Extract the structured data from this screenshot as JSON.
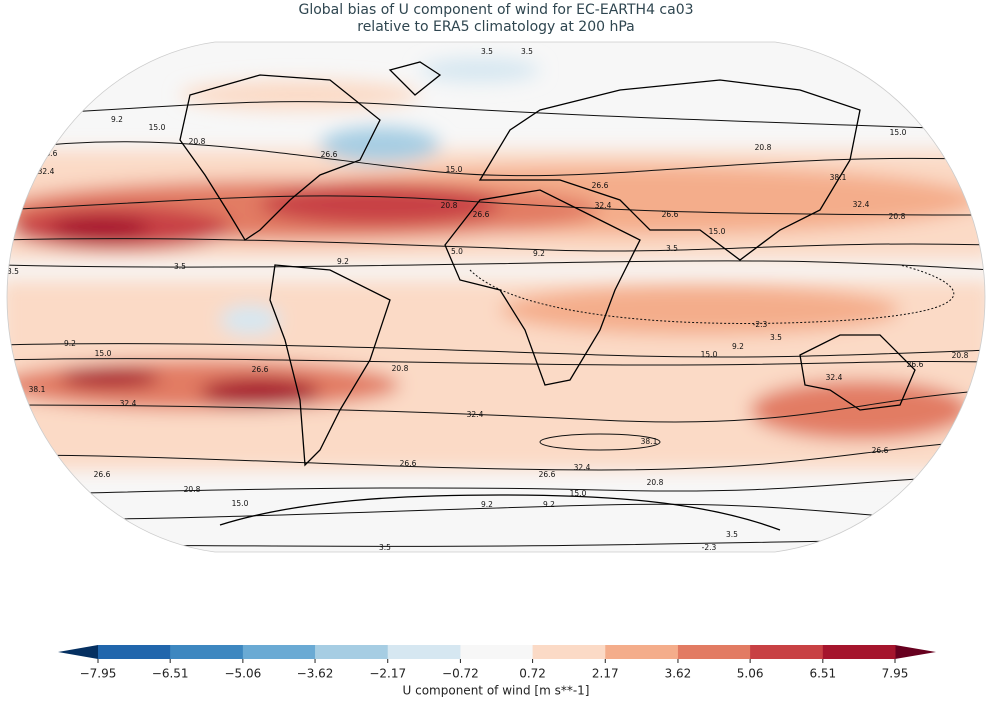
{
  "title": [
    "Global bias of U component of wind for EC-EARTH4 ca03",
    "relative to ERA5 climatology at 200 hPa"
  ],
  "contour_labels": [
    "3.5",
    "3.5",
    "9.2",
    "15.0",
    "20.8",
    "26.6",
    "32.4",
    "26.6",
    "15.0",
    "20.8",
    "26.6",
    "26.6",
    "32.4",
    "20.8",
    "15.0",
    "38.1",
    "32.4",
    "20.8",
    "26.6",
    "15.0",
    "3.5",
    "9.2",
    "5.0",
    "9.2",
    "3.5",
    "3.5",
    "-2.3",
    "3.5",
    "9.2",
    "15.0",
    "20.8",
    "26.6",
    "9.2",
    "15.0",
    "26.6",
    "20.8",
    "38.1",
    "32.4",
    "32.4",
    "38.1",
    "32.4",
    "26.6",
    "26.6",
    "20.8",
    "15.0",
    "20.8",
    "15.0",
    "9.2",
    "9.2",
    "3.5",
    "3.5",
    "-2.3",
    "26.6",
    "32.4",
    "26.6"
  ],
  "colorbar": {
    "label": "U component of wind [m s**-1]",
    "ticks": [
      {
        "value": -7.95,
        "label": "−7.95"
      },
      {
        "value": -6.51,
        "label": "−6.51"
      },
      {
        "value": -5.06,
        "label": "−5.06"
      },
      {
        "value": -3.62,
        "label": "−3.62"
      },
      {
        "value": -2.17,
        "label": "−2.17"
      },
      {
        "value": -0.72,
        "label": "−0.72"
      },
      0.72,
      2.17,
      3.62,
      5.06,
      6.51,
      7.95
    ],
    "colors": [
      "#2166ac",
      "#3d87c0",
      "#6aaad4",
      "#a6cde3",
      "#d6e7f1",
      "#f7f7f7",
      "#fbdac6",
      "#f4ad8b",
      "#e27b63",
      "#c84144",
      "#a5152d"
    ],
    "under_color": "#053061",
    "over_color": "#67001f"
  }
}
